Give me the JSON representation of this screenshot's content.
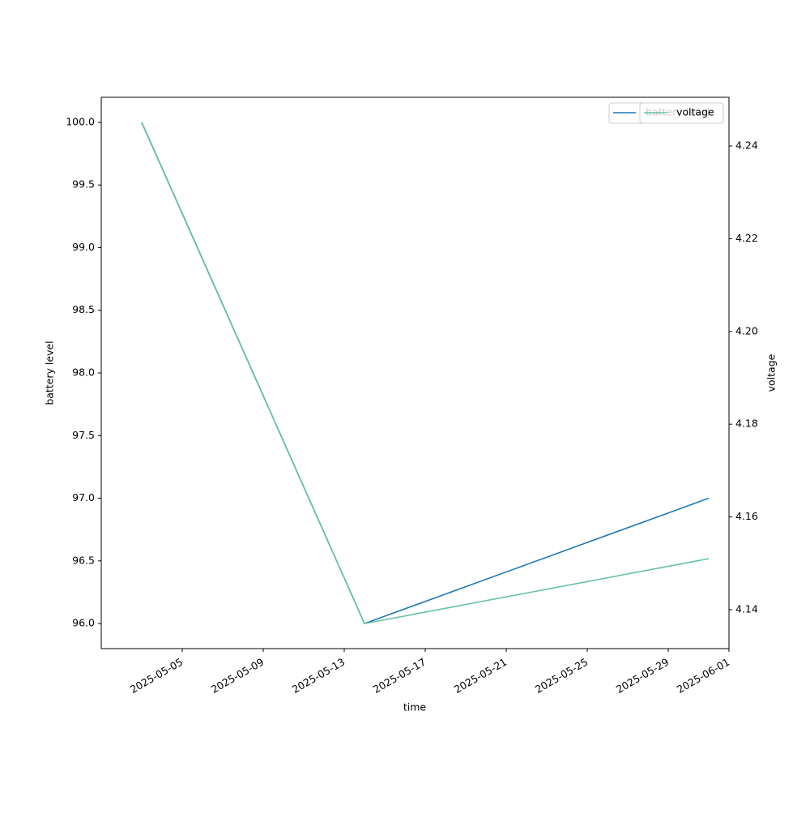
{
  "chart_data": {
    "type": "line",
    "x_label": "time",
    "y_label": "battery level",
    "y2_label": "voltage",
    "x": [
      "2025-05-03",
      "2025-05-14",
      "2025-05-31"
    ],
    "series": [
      {
        "name": "battery level",
        "color": "#1f77b4",
        "values": [
          100.0,
          96.0,
          97.0
        ]
      },
      {
        "name": "voltage",
        "color": "#66c2a5",
        "axis": "y2",
        "values": [
          4.245,
          4.137,
          4.151
        ]
      }
    ],
    "xlim": [
      "2025-05-01",
      "2025-06-01"
    ],
    "xticks": [
      "2025-05-05",
      "2025-05-09",
      "2025-05-13",
      "2025-05-17",
      "2025-05-21",
      "2025-05-25",
      "2025-05-29",
      "2025-06-01"
    ],
    "ylim": [
      95.8,
      100.2
    ],
    "yticks": [
      {
        "value": 96,
        "label": "96.0"
      },
      {
        "value": 96.5,
        "label": "96.5"
      },
      {
        "value": 97,
        "label": "97.0"
      },
      {
        "value": 97.5,
        "label": "97.5"
      },
      {
        "value": 98,
        "label": "98.0"
      },
      {
        "value": 98.5,
        "label": "98.5"
      },
      {
        "value": 99,
        "label": "99.0"
      },
      {
        "value": 99.5,
        "label": "99.5"
      },
      {
        "value": 100,
        "label": "100.0"
      }
    ],
    "y2lim": [
      4.1316,
      4.2505
    ],
    "y2ticks": [
      4.14,
      4.16,
      4.18,
      {
        "value": 4.2,
        "label": "4.20"
      },
      4.22,
      4.24
    ],
    "legend": "upper right"
  }
}
